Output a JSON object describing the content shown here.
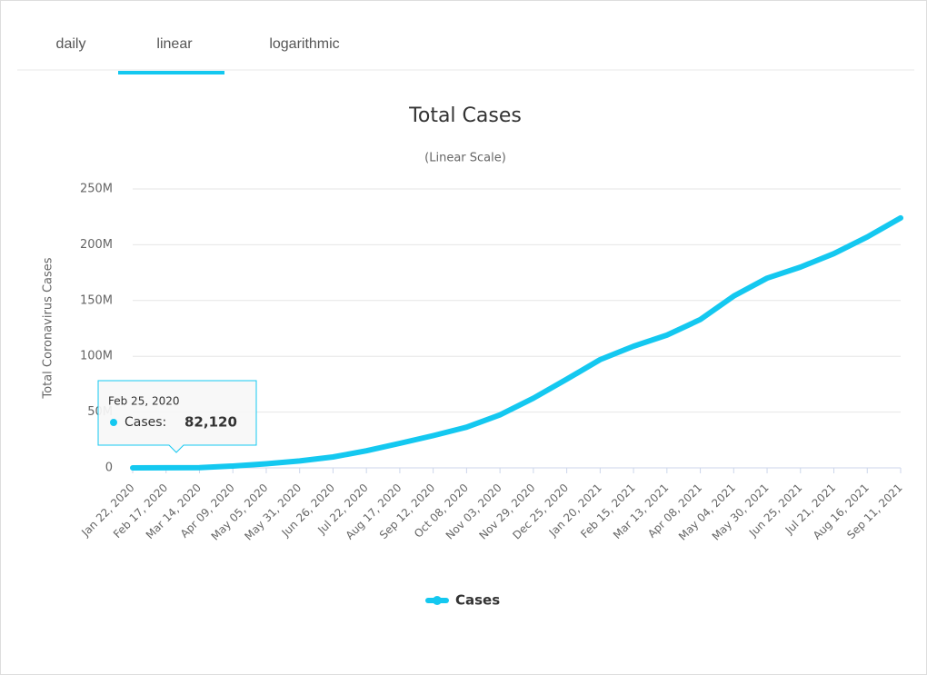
{
  "tabs": [
    "daily",
    "linear",
    "logarithmic"
  ],
  "active_tab": 1,
  "tooltip": {
    "title": "Feb 25, 2020",
    "label": "Cases:",
    "value": "82,120"
  },
  "chart_data": {
    "type": "line",
    "title": "Total Cases",
    "subtitle": "(Linear Scale)",
    "y_label": "Total Coronavirus Cases",
    "categories": [
      "Jan 22, 2020",
      "Feb 17, 2020",
      "Mar 14, 2020",
      "Apr 09, 2020",
      "May 05, 2020",
      "May 31, 2020",
      "Jun 26, 2020",
      "Jul 22, 2020",
      "Aug 17, 2020",
      "Sep 12, 2020",
      "Oct 08, 2020",
      "Nov 03, 2020",
      "Nov 29, 2020",
      "Dec 25, 2020",
      "Jan 20, 2021",
      "Feb 15, 2021",
      "Mar 13, 2021",
      "Apr 08, 2021",
      "May 04, 2021",
      "May 30, 2021",
      "Jun 25, 2021",
      "Jul 21, 2021",
      "Aug 16, 2021",
      "Sep 11, 2021"
    ],
    "series": [
      {
        "name": "Cases",
        "color": "#14c8f0",
        "values": [
          557,
          71000,
          156000,
          1600000,
          3700000,
          6200000,
          9800000,
          15300000,
          22000000,
          28900000,
          36500000,
          47500000,
          62500000,
          79500000,
          97000000,
          109000000,
          119000000,
          133000000,
          154000000,
          170000000,
          180000000,
          192000000,
          207000000,
          224000000
        ]
      }
    ],
    "ylim": [
      0,
      250000000
    ],
    "yticks": [
      0,
      {
        "value": 50000000,
        "label": "50M"
      },
      {
        "value": 100000000,
        "label": "100M"
      },
      {
        "value": 150000000,
        "label": "150M"
      },
      {
        "value": 200000000,
        "label": "200M"
      },
      {
        "value": 250000000,
        "label": "250M"
      }
    ],
    "grid": true,
    "legend": "bottom"
  }
}
